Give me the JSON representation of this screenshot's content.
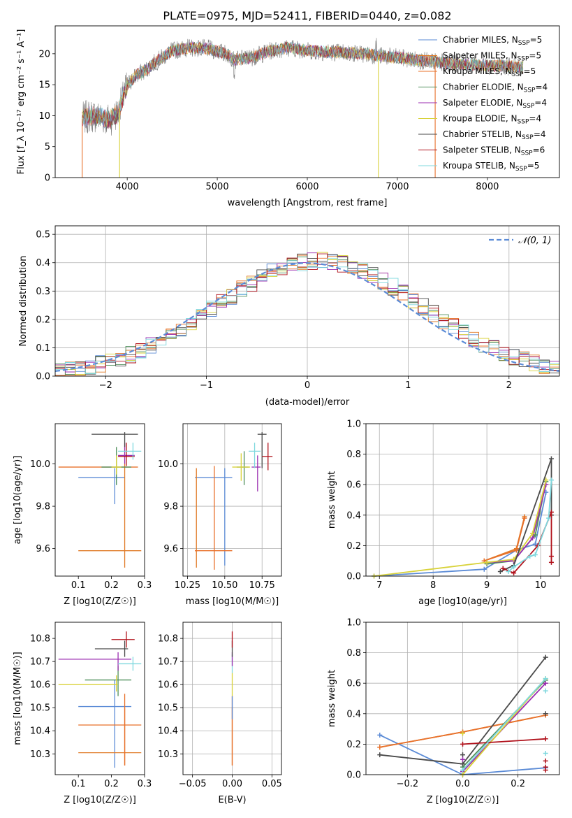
{
  "figure": {
    "title": "PLATE=0975, MJD=52411, FIBERID=0440, z=0.082"
  },
  "colors": {
    "Chabrier MILES": "#5b8bd6",
    "Salpeter MILES": "#e07b28",
    "Kroupa MILES": "#e8702a",
    "Chabrier ELODIE": "#4f8f5b",
    "Salpeter ELODIE": "#9b2eb0",
    "Kroupa ELODIE": "#d8d23a",
    "Chabrier STELIB": "#4a4a4a",
    "Salpeter STELIB": "#b0101a",
    "Kroupa STELIB": "#7fd8de"
  },
  "chart_data": [
    {
      "id": "spectrum",
      "type": "line",
      "title": "PLATE=0975, MJD=52411, FIBERID=0440, z=0.082",
      "xlabel": "wavelength [Angstrom, rest frame]",
      "ylabel": "Flux [f_λ 10⁻¹⁷ erg cm⁻² s⁻¹ A⁻¹]",
      "xlim": [
        3200,
        8800
      ],
      "ylim": [
        0,
        24.5
      ],
      "xticks": [
        4000,
        5000,
        6000,
        7000,
        8000
      ],
      "yticks": [
        0,
        5,
        10,
        15,
        20
      ],
      "grid": false,
      "legend_position": "top-right",
      "legend": [
        "Chabrier MILES, N_SSP=5",
        "Salpeter MILES, N_SSP=5",
        "Kroupa MILES, N_SSP=5",
        "Chabrier ELODIE, N_SSP=4",
        "Salpeter ELODIE, N_SSP=4",
        "Kroupa ELODIE, N_SSP=4",
        "Chabrier STELIB, N_SSP=4",
        "Salpeter STELIB, N_SSP=6",
        "Kroupa STELIB, N_SSP=5"
      ],
      "continuum": {
        "x": [
          3500,
          3600,
          3700,
          3800,
          3900,
          4000,
          4100,
          4200,
          4300,
          4400,
          4500,
          4700,
          4900,
          5100,
          5200,
          5400,
          5600,
          5800,
          6000,
          6200,
          6400,
          6600,
          6800,
          7000,
          7200,
          7400,
          7600,
          7800,
          8000,
          8200,
          8400
        ],
        "y": [
          9.5,
          10,
          9.8,
          9.3,
          10.5,
          15,
          16.5,
          17.3,
          18.5,
          19.5,
          20.5,
          21,
          20.8,
          20,
          19,
          19.5,
          20.5,
          21,
          20.5,
          20.3,
          20.2,
          20,
          19.7,
          19.4,
          19,
          18.7,
          18.4,
          18.3,
          18.1,
          18,
          17.8
        ]
      },
      "drops_to_zero": [
        {
          "series": "Kroupa MILES",
          "x": 3500
        },
        {
          "series": "Kroupa ELODIE",
          "x": 3915
        },
        {
          "series": "Kroupa ELODIE",
          "x": 6790
        },
        {
          "series": "Kroupa MILES",
          "x": 7420
        }
      ]
    },
    {
      "id": "residuals",
      "type": "histogram",
      "xlabel": "(data-model)/error",
      "ylabel": "Normed distribution",
      "xlim": [
        -2.5,
        2.5
      ],
      "ylim": [
        0,
        0.53
      ],
      "xticks": [
        -2,
        -1,
        0,
        1,
        2
      ],
      "yticks": [
        0.0,
        0.1,
        0.2,
        0.3,
        0.4,
        0.5
      ],
      "grid": true,
      "legend_position": "top-right",
      "legend": [
        "N(0,1)"
      ],
      "bin_width": 0.1,
      "bin_start": -2.5,
      "reference_curve": "normal pdf, mean 0, sigma 1"
    },
    {
      "id": "age-vs-z",
      "type": "errorbar",
      "xlabel": "Z [log10(Z/Z☉)]",
      "ylabel": "age  [log10(age/yr)]",
      "xlim": [
        0.03,
        0.3
      ],
      "ylim": [
        9.47,
        10.19
      ],
      "xticks": [
        0.1,
        0.2,
        0.3
      ],
      "yticks": [
        9.6,
        9.8,
        10.0
      ],
      "grid": false,
      "points": [
        {
          "series": "Chabrier MILES",
          "x": 0.21,
          "y": 9.935,
          "xerr": [
            0.1,
            0.24
          ],
          "yerr": [
            9.81,
            9.98
          ]
        },
        {
          "series": "Salpeter MILES",
          "x": 0.24,
          "y": 9.59,
          "xerr": [
            0.1,
            0.29
          ],
          "yerr": [
            9.51,
            9.99
          ]
        },
        {
          "series": "Kroupa MILES",
          "x": 0.24,
          "y": 9.985,
          "xerr": [
            0.04,
            0.28
          ],
          "yerr": [
            9.99,
            10.0
          ]
        },
        {
          "series": "Chabrier ELODIE",
          "x": 0.215,
          "y": 9.985,
          "xerr": [
            0.17,
            0.26
          ],
          "yerr": [
            9.9,
            10.08
          ]
        },
        {
          "series": "Salpeter ELODIE",
          "x": 0.24,
          "y": 10.04,
          "xerr": [
            0.22,
            0.27
          ],
          "yerr": [
            10.0,
            10.1
          ]
        },
        {
          "series": "Kroupa ELODIE",
          "x": 0.215,
          "y": 9.985,
          "xerr": [
            0.2,
            0.23
          ],
          "yerr": [
            9.95,
            10.04
          ]
        },
        {
          "series": "Chabrier STELIB",
          "x": 0.24,
          "y": 10.14,
          "xerr": [
            0.14,
            0.28
          ],
          "yerr": [
            10.08,
            10.15
          ]
        },
        {
          "series": "Salpeter STELIB",
          "x": 0.245,
          "y": 10.035,
          "xerr": [
            0.22,
            0.27
          ],
          "yerr": [
            9.99,
            10.1
          ]
        },
        {
          "series": "Kroupa STELIB",
          "x": 0.265,
          "y": 10.06,
          "xerr": [
            0.22,
            0.29
          ],
          "yerr": [
            10.02,
            10.1
          ]
        }
      ]
    },
    {
      "id": "age-vs-mass",
      "type": "errorbar",
      "xlabel": "mass [log10(M/M☉)]",
      "ylabel": "",
      "xlim": [
        10.22,
        10.88
      ],
      "ylim": [
        9.47,
        10.19
      ],
      "xticks": [
        10.25,
        10.5,
        10.75
      ],
      "xticklabels": [
        "10.25",
        "10.50",
        "10.75"
      ],
      "yticks": [
        9.6,
        9.8,
        10.0
      ],
      "grid": true,
      "points": [
        {
          "series": "Chabrier MILES",
          "x": 10.5,
          "y": 9.935,
          "xerr": [
            10.3,
            10.55
          ],
          "yerr": [
            9.52,
            9.98
          ]
        },
        {
          "series": "Salpeter MILES",
          "x": 10.31,
          "y": 9.59,
          "xerr": [
            10.3,
            10.32
          ],
          "yerr": [
            9.51,
            9.98
          ]
        },
        {
          "series": "Kroupa MILES",
          "x": 10.43,
          "y": 9.59,
          "xerr": [
            10.3,
            10.55
          ],
          "yerr": [
            9.5,
            9.99
          ]
        },
        {
          "series": "Chabrier ELODIE",
          "x": 10.63,
          "y": 9.985,
          "xerr": [
            10.58,
            10.66
          ],
          "yerr": [
            9.9,
            10.06
          ]
        },
        {
          "series": "Salpeter ELODIE",
          "x": 10.72,
          "y": 9.985,
          "xerr": [
            10.68,
            10.74
          ],
          "yerr": [
            9.87,
            10.04
          ]
        },
        {
          "series": "Kroupa ELODIE",
          "x": 10.61,
          "y": 9.985,
          "xerr": [
            10.55,
            10.67
          ],
          "yerr": [
            9.92,
            10.05
          ]
        },
        {
          "series": "Chabrier STELIB",
          "x": 10.75,
          "y": 10.14,
          "xerr": [
            10.72,
            10.78
          ],
          "yerr": [
            9.98,
            10.15
          ]
        },
        {
          "series": "Salpeter STELIB",
          "x": 10.79,
          "y": 10.035,
          "xerr": [
            10.75,
            10.82
          ],
          "yerr": [
            9.97,
            10.1
          ]
        },
        {
          "series": "Kroupa STELIB",
          "x": 10.7,
          "y": 10.06,
          "xerr": [
            10.66,
            10.74
          ],
          "yerr": [
            9.98,
            10.1
          ]
        }
      ]
    },
    {
      "id": "weight-vs-age",
      "type": "line",
      "xlabel": "age  [log10(age/yr)]",
      "ylabel": "mass weight",
      "xlim": [
        6.75,
        10.35
      ],
      "ylim": [
        0,
        1.0
      ],
      "xticks": [
        7,
        8,
        9,
        10
      ],
      "yticks": [
        0.0,
        0.2,
        0.4,
        0.6,
        0.8,
        1.0
      ],
      "grid": true,
      "series": [
        {
          "name": "Chabrier MILES",
          "x": [
            6.9,
            8.95,
            9.55,
            9.9,
            10.1
          ],
          "y": [
            0.0,
            0.045,
            0.17,
            0.21,
            0.55
          ]
        },
        {
          "name": "Salpeter MILES",
          "x": [
            8.95,
            9.55,
            9.7
          ],
          "y": [
            0.1,
            0.18,
            0.39
          ]
        },
        {
          "name": "Kroupa MILES",
          "x": [
            8.95,
            9.55,
            9.7
          ],
          "y": [
            0.1,
            0.17,
            0.38
          ]
        },
        {
          "name": "Chabrier ELODIE",
          "x": [
            9.0,
            9.5,
            9.9,
            10.1
          ],
          "y": [
            0.08,
            0.1,
            0.27,
            0.62
          ]
        },
        {
          "name": "Salpeter ELODIE",
          "x": [
            9.0,
            9.5,
            9.85,
            10.1
          ],
          "y": [
            0.09,
            0.1,
            0.25,
            0.6
          ]
        },
        {
          "name": "Kroupa ELODIE",
          "x": [
            6.9,
            9.0,
            9.5,
            9.85,
            10.1
          ],
          "y": [
            0.0,
            0.09,
            0.11,
            0.28,
            0.63
          ]
        },
        {
          "name": "Chabrier STELIB",
          "x": [
            9.25,
            9.5,
            10.2,
            10.2
          ],
          "y": [
            0.03,
            0.07,
            0.77,
            0.4
          ]
        },
        {
          "name": "Salpeter STELIB",
          "x": [
            9.3,
            9.5,
            9.95,
            10.2,
            10.2,
            10.2
          ],
          "y": [
            0.05,
            0.02,
            0.2,
            0.42,
            0.13,
            0.09
          ]
        },
        {
          "name": "Kroupa STELIB",
          "x": [
            9.4,
            9.5,
            9.8,
            9.9,
            10.15,
            10.2
          ],
          "y": [
            0.03,
            0.06,
            0.13,
            0.14,
            0.38,
            0.63
          ]
        }
      ]
    },
    {
      "id": "mass-vs-z",
      "type": "errorbar",
      "xlabel": "Z [log10(Z/Z☉)]",
      "ylabel": "mass [log10(M/M☉)]",
      "xlim": [
        0.03,
        0.3
      ],
      "ylim": [
        10.21,
        10.87
      ],
      "xticks": [
        0.1,
        0.2,
        0.3
      ],
      "yticks": [
        10.3,
        10.4,
        10.5,
        10.6,
        10.7,
        10.8
      ],
      "grid": false,
      "points": [
        {
          "series": "Chabrier MILES",
          "x": 0.21,
          "y": 10.505,
          "xerr": [
            0.1,
            0.26
          ],
          "yerr": [
            10.24,
            10.62
          ]
        },
        {
          "series": "Salpeter MILES",
          "x": 0.24,
          "y": 10.305,
          "xerr": [
            0.1,
            0.29
          ],
          "yerr": [
            10.25,
            10.5
          ]
        },
        {
          "series": "Kroupa MILES",
          "x": 0.24,
          "y": 10.425,
          "xerr": [
            0.1,
            0.29
          ],
          "yerr": [
            10.25,
            10.56
          ]
        },
        {
          "series": "Chabrier ELODIE",
          "x": 0.22,
          "y": 10.62,
          "xerr": [
            0.12,
            0.26
          ],
          "yerr": [
            10.55,
            10.68
          ]
        },
        {
          "series": "Salpeter ELODIE",
          "x": 0.22,
          "y": 10.71,
          "xerr": [
            0.04,
            0.26
          ],
          "yerr": [
            10.66,
            10.74
          ]
        },
        {
          "series": "Kroupa ELODIE",
          "x": 0.215,
          "y": 10.6,
          "xerr": [
            0.04,
            0.22
          ],
          "yerr": [
            10.57,
            10.64
          ]
        },
        {
          "series": "Chabrier STELIB",
          "x": 0.24,
          "y": 10.755,
          "xerr": [
            0.15,
            0.25
          ],
          "yerr": [
            10.72,
            10.79
          ]
        },
        {
          "series": "Salpeter STELIB",
          "x": 0.245,
          "y": 10.795,
          "xerr": [
            0.2,
            0.27
          ],
          "yerr": [
            10.76,
            10.83
          ]
        },
        {
          "series": "Kroupa STELIB",
          "x": 0.265,
          "y": 10.69,
          "xerr": [
            0.22,
            0.29
          ],
          "yerr": [
            10.66,
            10.72
          ]
        }
      ]
    },
    {
      "id": "mass-vs-ebv",
      "type": "errorbar",
      "xlabel": "E(B-V)",
      "ylabel": "",
      "xlim": [
        -0.062,
        0.062
      ],
      "ylim": [
        10.21,
        10.87
      ],
      "xticks": [
        -0.05,
        0.0,
        0.05
      ],
      "xticklabels": [
        "−0.05",
        "0.00",
        "0.05"
      ],
      "yticks": [
        10.3,
        10.4,
        10.5,
        10.6,
        10.7,
        10.8
      ],
      "grid": true,
      "points": [
        {
          "series": "Salpeter MILES",
          "x": 0.0,
          "y": 10.3,
          "yerr": [
            10.25,
            10.5
          ]
        },
        {
          "series": "Kroupa MILES",
          "x": 0.0,
          "y": 10.42,
          "yerr": [
            10.25,
            10.55
          ]
        },
        {
          "series": "Chabrier MILES",
          "x": 0.0,
          "y": 10.5,
          "yerr": [
            10.45,
            10.55
          ]
        },
        {
          "series": "Kroupa ELODIE",
          "x": 0.0,
          "y": 10.6,
          "yerr": [
            10.55,
            10.65
          ]
        },
        {
          "series": "Kroupa STELIB",
          "x": 0.0,
          "y": 10.69,
          "yerr": [
            10.65,
            10.73
          ]
        },
        {
          "series": "Salpeter ELODIE",
          "x": 0.0,
          "y": 10.71,
          "yerr": [
            10.68,
            10.74
          ]
        },
        {
          "series": "Chabrier STELIB",
          "x": 0.0,
          "y": 10.755,
          "yerr": [
            10.72,
            10.79
          ]
        },
        {
          "series": "Salpeter STELIB",
          "x": 0.0,
          "y": 10.795,
          "yerr": [
            10.76,
            10.83
          ]
        }
      ]
    },
    {
      "id": "weight-vs-z",
      "type": "line",
      "xlabel": "Z [log10(Z/Z☉)]",
      "ylabel": "mass weight",
      "xlim": [
        -0.35,
        0.35
      ],
      "ylim": [
        0,
        1.0
      ],
      "xticks": [
        -0.2,
        0.0,
        0.2
      ],
      "xticklabels": [
        "−0.2",
        "0.0",
        "0.2"
      ],
      "yticks": [
        0.0,
        0.2,
        0.4,
        0.6,
        0.8,
        1.0
      ],
      "grid": true,
      "series": [
        {
          "name": "Chabrier MILES",
          "x": [
            -0.3,
            0.0,
            0.3
          ],
          "y": [
            0.26,
            0.0,
            0.045
          ]
        },
        {
          "name": "Salpeter MILES",
          "x": [
            -0.3,
            0.0,
            0.3
          ],
          "y": [
            0.18,
            0.28,
            0.39
          ]
        },
        {
          "name": "Kroupa MILES",
          "x": [
            -0.3,
            0.0,
            0.3
          ],
          "y": [
            0.18,
            0.28,
            0.39
          ]
        },
        {
          "name": "Chabrier ELODIE",
          "x": [
            0.0,
            0.3
          ],
          "y": [
            0.05,
            0.62
          ]
        },
        {
          "name": "Salpeter ELODIE",
          "x": [
            0.0,
            0.3
          ],
          "y": [
            0.02,
            0.6
          ]
        },
        {
          "name": "Kroupa ELODIE",
          "x": [
            0.0,
            0.3
          ],
          "y": [
            0.0,
            0.63
          ]
        },
        {
          "name": "Chabrier STELIB",
          "x": [
            -0.3,
            0.0,
            0.3
          ],
          "y": [
            0.13,
            0.07,
            0.77
          ]
        },
        {
          "name": "Salpeter STELIB",
          "x": [
            0.0,
            0.3
          ],
          "y": [
            0.2,
            0.235
          ]
        },
        {
          "name": "Kroupa STELIB",
          "x": [
            0.0,
            0.3
          ],
          "y": [
            0.03,
            0.63
          ]
        }
      ],
      "extra_points": [
        {
          "series": "Chabrier STELIB",
          "x": 0.3,
          "y": 0.4
        },
        {
          "series": "Salpeter STELIB",
          "x": 0.3,
          "y": 0.09
        },
        {
          "series": "Salpeter STELIB",
          "x": 0.3,
          "y": 0.05
        },
        {
          "series": "Salpeter STELIB",
          "x": 0.3,
          "y": 0.03
        },
        {
          "series": "Kroupa STELIB",
          "x": 0.3,
          "y": 0.55
        },
        {
          "series": "Kroupa STELIB",
          "x": 0.3,
          "y": 0.14
        },
        {
          "series": "Kroupa ELODIE",
          "x": 0.0,
          "y": 0.27
        },
        {
          "series": "Chabrier STELIB",
          "x": 0.0,
          "y": 0.13
        },
        {
          "series": "Salpeter ELODIE",
          "x": 0.0,
          "y": 0.1
        }
      ]
    }
  ]
}
